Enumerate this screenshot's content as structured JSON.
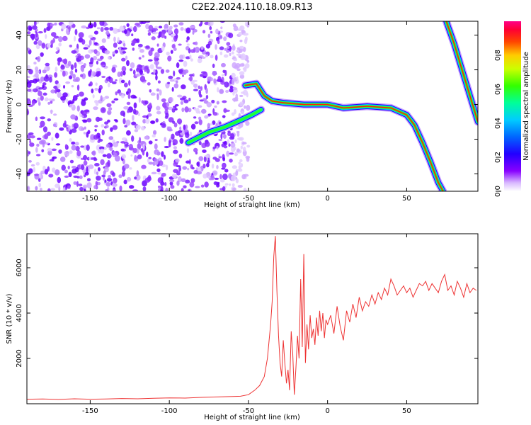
{
  "title": "C2E2.2024.110.18.09.R13",
  "colors": {
    "snr_line": "#ee3333",
    "axis": "#000000",
    "background": "#ffffff"
  },
  "chart_data": [
    {
      "type": "heatmap",
      "xlabel": "Height of straight line (km)",
      "ylabel": "Frequency (Hz)",
      "xlim": [
        -190,
        95
      ],
      "ylim": [
        -50,
        48
      ],
      "xticks": [
        -150,
        -100,
        -50,
        0,
        50
      ],
      "yticks": [
        -40,
        -20,
        0,
        20,
        40
      ],
      "colorbar": {
        "label": "Normalized spectral amplitude",
        "ticks": [
          "0.0",
          "0.2",
          "0.4",
          "0.6",
          "0.8"
        ],
        "range": [
          0,
          1
        ]
      },
      "signal_trace": {
        "upper_branch": [
          [
            -52,
            11
          ],
          [
            -45,
            12
          ],
          [
            -40,
            5
          ],
          [
            -35,
            2
          ],
          [
            -28,
            1
          ],
          [
            -15,
            0
          ],
          [
            0,
            0
          ],
          [
            10,
            -2
          ],
          [
            25,
            -1
          ],
          [
            40,
            -2
          ],
          [
            50,
            -6
          ],
          [
            55,
            -12
          ],
          [
            60,
            -22
          ],
          [
            65,
            -33
          ],
          [
            70,
            -45
          ],
          [
            73,
            -50
          ]
        ],
        "lower_branch": [
          [
            -88,
            -22
          ],
          [
            -75,
            -16
          ],
          [
            -65,
            -13
          ],
          [
            -55,
            -9
          ],
          [
            -48,
            -6
          ],
          [
            -42,
            -3
          ]
        ],
        "aliased_branch": [
          [
            75,
            48
          ],
          [
            80,
            35
          ],
          [
            85,
            20
          ],
          [
            90,
            5
          ],
          [
            95,
            -10
          ]
        ]
      }
    },
    {
      "type": "line",
      "xlabel": "Height of straight line (km)",
      "ylabel": "SNR (10 * v/v)",
      "xlim": [
        -190,
        95
      ],
      "ylim": [
        0,
        7500
      ],
      "xticks": [
        -150,
        -100,
        -50,
        0,
        50
      ],
      "yticks": [
        2000,
        4000,
        6000
      ],
      "series": [
        {
          "x": [
            -190,
            -180,
            -170,
            -160,
            -150,
            -140,
            -130,
            -120,
            -110,
            -100,
            -90,
            -80,
            -70,
            -60,
            -55,
            -50,
            -46,
            -43,
            -40,
            -38,
            -36,
            -35,
            -34,
            -33,
            -32,
            -31,
            -30,
            -29,
            -28,
            -27,
            -26,
            -25,
            -24,
            -23,
            -22,
            -21,
            -20,
            -19,
            -18,
            -17,
            -16,
            -15,
            -14,
            -13,
            -12,
            -11,
            -10,
            -9,
            -8,
            -7,
            -6,
            -5,
            -4,
            -3,
            -2,
            -1,
            0,
            2,
            4,
            6,
            8,
            10,
            12,
            14,
            16,
            18,
            20,
            22,
            24,
            26,
            28,
            30,
            32,
            34,
            36,
            38,
            40,
            42,
            44,
            46,
            48,
            50,
            52,
            54,
            56,
            58,
            60,
            62,
            64,
            66,
            68,
            70,
            72,
            74,
            76,
            78,
            80,
            82,
            84,
            86,
            88,
            90,
            92,
            94
          ],
          "y": [
            200,
            210,
            190,
            220,
            200,
            210,
            230,
            220,
            240,
            260,
            250,
            280,
            300,
            320,
            330,
            400,
            600,
            800,
            1200,
            2000,
            3500,
            4500,
            6500,
            7400,
            5000,
            3000,
            1800,
            1200,
            2800,
            1800,
            900,
            1500,
            600,
            3200,
            2200,
            400,
            1600,
            3000,
            2000,
            5500,
            2500,
            6600,
            1800,
            3500,
            2400,
            3900,
            2900,
            3300,
            2600,
            3800,
            3000,
            4100,
            3200,
            4000,
            2900,
            3700,
            3500,
            3900,
            3100,
            4300,
            3400,
            2800,
            4100,
            3600,
            4400,
            3800,
            4700,
            4100,
            4500,
            4300,
            4800,
            4400,
            4900,
            4600,
            5100,
            4800,
            5500,
            5200,
            4800,
            5000,
            5200,
            4900,
            5100,
            4700,
            5000,
            5300,
            5200,
            5400,
            5000,
            5300,
            5100,
            4900,
            5400,
            5700,
            5000,
            5200,
            4800,
            5400,
            5100,
            4700,
            5300,
            4900,
            5100,
            5000
          ]
        }
      ]
    }
  ]
}
